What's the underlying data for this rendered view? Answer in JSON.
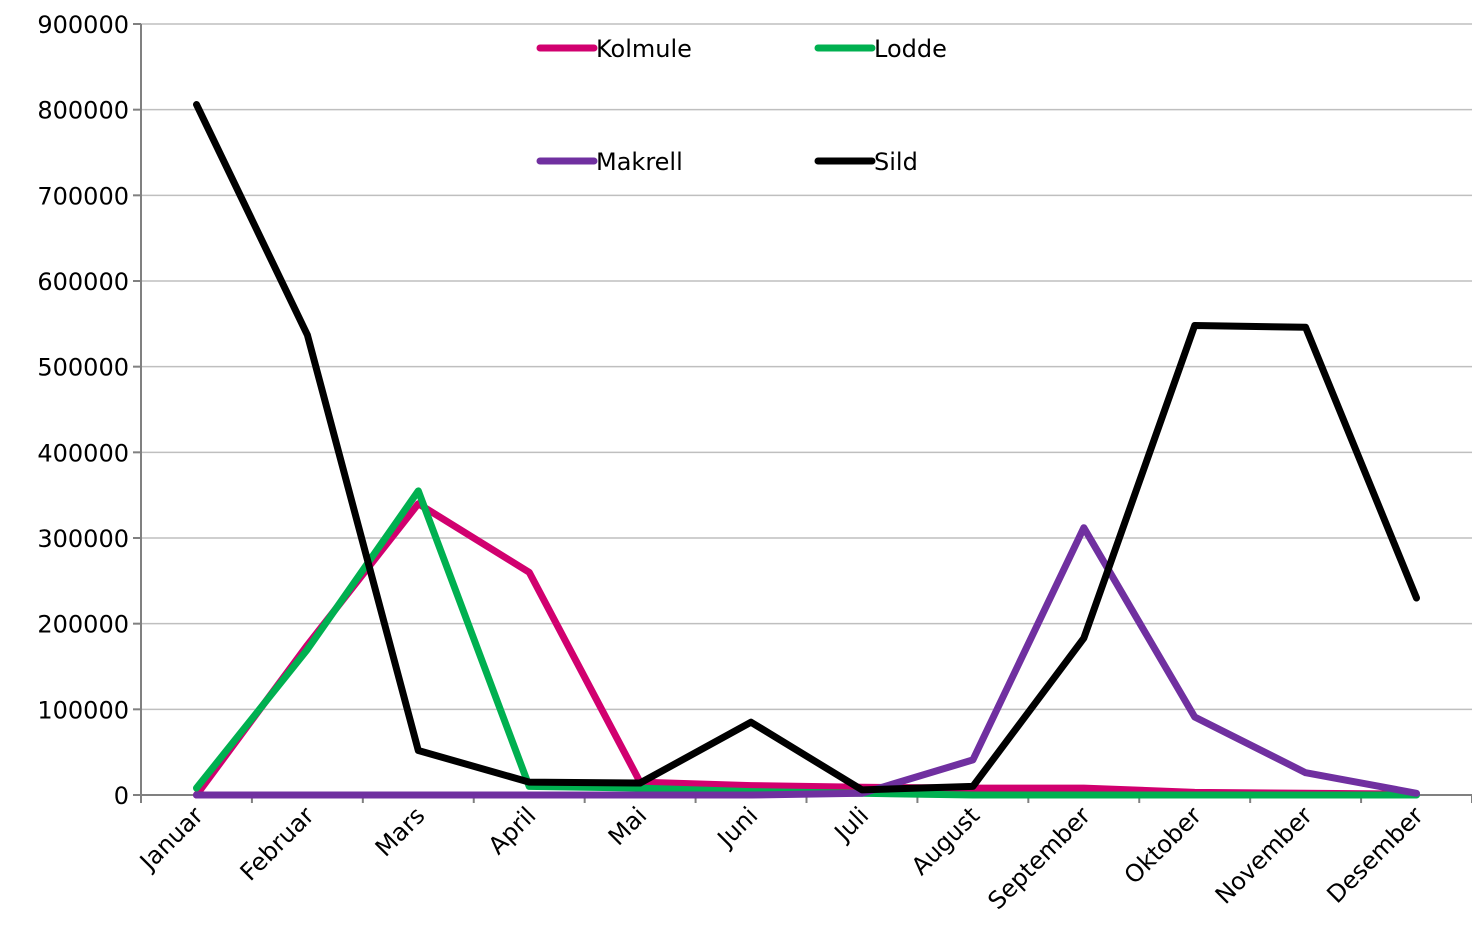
{
  "chart_data": {
    "type": "line",
    "title": "",
    "xlabel": "",
    "ylabel": "",
    "ylim": [
      0,
      900000
    ],
    "yticks": [
      0,
      100000,
      200000,
      300000,
      400000,
      500000,
      600000,
      700000,
      800000,
      900000
    ],
    "grid": "horizontal",
    "legend_position": "top",
    "categories": [
      "Januar",
      "Februar",
      "Mars",
      "April",
      "Mai",
      "Juni",
      "Juli",
      "August",
      "September",
      "Oktober",
      "November",
      "Desember"
    ],
    "series": [
      {
        "name": "Kolmule",
        "color": "#d1006f",
        "values": [
          0,
          175000,
          340000,
          260000,
          15000,
          11000,
          9000,
          8000,
          8000,
          3000,
          2000,
          1000
        ]
      },
      {
        "name": "Lodde",
        "color": "#00b050",
        "values": [
          8000,
          170000,
          355000,
          10000,
          8000,
          4000,
          2000,
          0,
          0,
          0,
          0,
          0
        ]
      },
      {
        "name": "Makrell",
        "color": "#7030a0",
        "values": [
          0,
          0,
          0,
          0,
          0,
          0,
          2000,
          41000,
          312000,
          91000,
          26000,
          2000
        ]
      },
      {
        "name": "Sild",
        "color": "#000000",
        "values": [
          806000,
          537000,
          52000,
          15000,
          14000,
          85000,
          6000,
          10000,
          183000,
          548000,
          546000,
          230000
        ]
      }
    ]
  }
}
